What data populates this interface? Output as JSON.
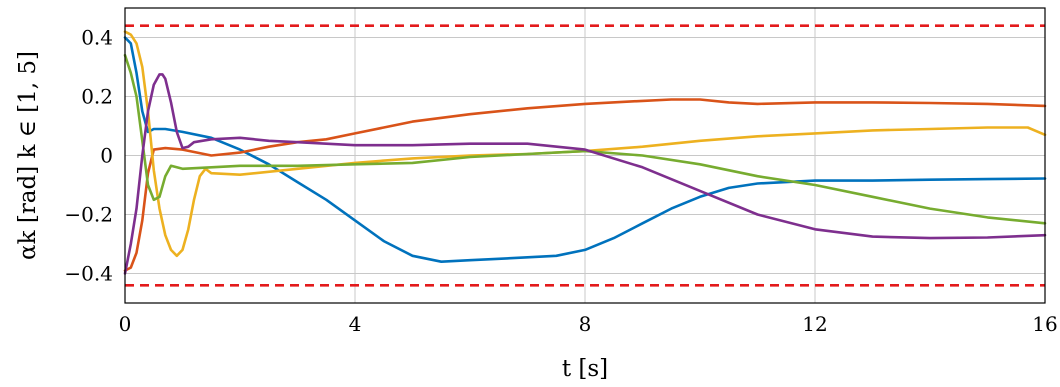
{
  "chart_data": {
    "type": "line",
    "xlabel": "t [s]",
    "ylabel": "αk [rad]   k ∈ [1, 5]",
    "xlim": [
      0,
      16
    ],
    "ylim": [
      -0.5,
      0.5
    ],
    "xticks": [
      0,
      4,
      8,
      12,
      16
    ],
    "yticks": [
      -0.4,
      -0.2,
      0,
      0.2,
      0.4
    ],
    "xtick_labels": [
      "0",
      "4",
      "8",
      "12",
      "16"
    ],
    "ytick_labels": [
      "−0.4",
      "−0.2",
      "0",
      "0.2",
      "0.4"
    ],
    "grid": true,
    "legend": "none",
    "reference_lines": [
      {
        "y": 0.44,
        "color": "#e31a1c",
        "style": "dashed"
      },
      {
        "y": -0.44,
        "color": "#e31a1c",
        "style": "dashed"
      }
    ],
    "series": [
      {
        "color": "#0072bd",
        "x": [
          0,
          0.1,
          0.2,
          0.3,
          0.4,
          0.5,
          0.7,
          1.0,
          1.5,
          2.0,
          2.5,
          3.0,
          3.5,
          4.0,
          4.5,
          5.0,
          5.5,
          6.0,
          6.5,
          7.0,
          7.5,
          8.0,
          8.5,
          9.0,
          9.5,
          10.0,
          10.5,
          11.0,
          12.0,
          13.0,
          14.0,
          15.0,
          16.0
        ],
        "y": [
          0.4,
          0.38,
          0.28,
          0.15,
          0.08,
          0.09,
          0.09,
          0.08,
          0.06,
          0.02,
          -0.03,
          -0.09,
          -0.15,
          -0.22,
          -0.29,
          -0.34,
          -0.36,
          -0.355,
          -0.35,
          -0.345,
          -0.34,
          -0.32,
          -0.28,
          -0.23,
          -0.18,
          -0.14,
          -0.11,
          -0.095,
          -0.085,
          -0.085,
          -0.082,
          -0.08,
          -0.078
        ]
      },
      {
        "color": "#d95319",
        "x": [
          0,
          0.1,
          0.2,
          0.3,
          0.4,
          0.5,
          0.7,
          1.0,
          1.5,
          2.0,
          2.5,
          3.0,
          3.5,
          4.0,
          4.5,
          5.0,
          6.0,
          7.0,
          8.0,
          9.0,
          9.5,
          10.0,
          10.5,
          11.0,
          12.0,
          13.0,
          14.0,
          15.0,
          16.0
        ],
        "y": [
          -0.39,
          -0.38,
          -0.33,
          -0.22,
          -0.06,
          0.02,
          0.025,
          0.02,
          0.0,
          0.01,
          0.03,
          0.045,
          0.055,
          0.075,
          0.095,
          0.115,
          0.14,
          0.16,
          0.175,
          0.185,
          0.19,
          0.19,
          0.18,
          0.175,
          0.18,
          0.18,
          0.178,
          0.175,
          0.168
        ]
      },
      {
        "color": "#edb120",
        "x": [
          0,
          0.1,
          0.2,
          0.3,
          0.4,
          0.5,
          0.6,
          0.7,
          0.8,
          0.9,
          1.0,
          1.1,
          1.2,
          1.3,
          1.4,
          1.5,
          2.0,
          3.0,
          4.0,
          5.0,
          6.0,
          7.0,
          8.0,
          9.0,
          10.0,
          11.0,
          12.0,
          13.0,
          14.0,
          15.0,
          15.7,
          16.0
        ],
        "y": [
          0.42,
          0.41,
          0.38,
          0.3,
          0.15,
          -0.05,
          -0.18,
          -0.27,
          -0.32,
          -0.34,
          -0.32,
          -0.25,
          -0.15,
          -0.07,
          -0.045,
          -0.06,
          -0.065,
          -0.045,
          -0.025,
          -0.01,
          0.0,
          0.005,
          0.015,
          0.03,
          0.05,
          0.065,
          0.075,
          0.085,
          0.09,
          0.095,
          0.095,
          0.07
        ]
      },
      {
        "color": "#77ac30",
        "x": [
          0,
          0.1,
          0.2,
          0.3,
          0.4,
          0.5,
          0.6,
          0.7,
          0.8,
          0.9,
          1.0,
          1.5,
          2.0,
          3.0,
          4.0,
          5.0,
          6.0,
          7.0,
          8.0,
          9.0,
          10.0,
          11.0,
          12.0,
          13.0,
          14.0,
          15.0,
          16.0
        ],
        "y": [
          0.34,
          0.28,
          0.2,
          0.05,
          -0.1,
          -0.15,
          -0.14,
          -0.07,
          -0.035,
          -0.04,
          -0.045,
          -0.04,
          -0.035,
          -0.035,
          -0.03,
          -0.025,
          -0.005,
          0.005,
          0.015,
          0.0,
          -0.03,
          -0.07,
          -0.1,
          -0.14,
          -0.18,
          -0.21,
          -0.23
        ]
      },
      {
        "color": "#7e2f8e",
        "x": [
          0,
          0.1,
          0.2,
          0.3,
          0.4,
          0.5,
          0.6,
          0.65,
          0.7,
          0.8,
          0.9,
          1.0,
          1.1,
          1.2,
          1.5,
          2.0,
          2.5,
          3.0,
          4.0,
          5.0,
          6.0,
          7.0,
          8.0,
          9.0,
          10.0,
          11.0,
          12.0,
          13.0,
          14.0,
          15.0,
          16.0
        ],
        "y": [
          -0.4,
          -0.3,
          -0.18,
          0.0,
          0.15,
          0.24,
          0.275,
          0.275,
          0.26,
          0.18,
          0.08,
          0.025,
          0.03,
          0.045,
          0.055,
          0.06,
          0.05,
          0.045,
          0.035,
          0.035,
          0.04,
          0.04,
          0.02,
          -0.04,
          -0.12,
          -0.2,
          -0.25,
          -0.275,
          -0.28,
          -0.278,
          -0.27
        ]
      }
    ]
  }
}
